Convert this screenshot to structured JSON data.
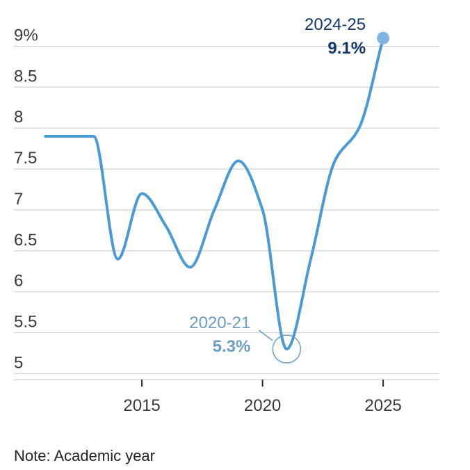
{
  "chart_data": {
    "type": "line",
    "x": [
      2011,
      2012,
      2013,
      2014,
      2015,
      2016,
      2017,
      2018,
      2019,
      2020,
      2021,
      2022,
      2023,
      2024,
      2025
    ],
    "series": [
      {
        "values": [
          7.9,
          7.9,
          7.9,
          6.4,
          7.2,
          6.8,
          6.3,
          7.0,
          7.6,
          7.0,
          5.3,
          6.4,
          7.6,
          8.0,
          9.1
        ]
      }
    ],
    "yticks": [
      5,
      5.5,
      6,
      6.5,
      7,
      7.5,
      8,
      8.5,
      9
    ],
    "ytick_labels": [
      "5",
      "5.5",
      "6",
      "6.5",
      "7",
      "7.5",
      "8",
      "8.5",
      "9%"
    ],
    "xticks": [
      2015,
      2020,
      2025
    ],
    "xtick_labels": [
      "2015",
      "2020",
      "2025"
    ],
    "ylim": [
      4.85,
      9.2
    ],
    "xlim": [
      2010,
      2025.4
    ],
    "grid": true,
    "line_color": "#4a9ad6",
    "annotations": [
      {
        "x": 2025,
        "y": 9.1,
        "label": "2024-25",
        "value": "9.1%",
        "marker": "filled-dot",
        "label_color": "#14356b",
        "marker_color": "#7fb4e3"
      },
      {
        "x": 2021,
        "y": 5.3,
        "label": "2020-21",
        "value": "5.3%",
        "marker": "hollow-circle",
        "label_color": "#6b9cc2",
        "marker_color": "#6b9cc2"
      }
    ]
  },
  "note": "Note: Academic year"
}
